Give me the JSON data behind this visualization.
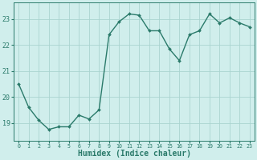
{
  "x": [
    0,
    1,
    2,
    3,
    4,
    5,
    6,
    7,
    8,
    9,
    10,
    11,
    12,
    13,
    14,
    15,
    16,
    17,
    18,
    19,
    20,
    21,
    22,
    23
  ],
  "y": [
    20.5,
    19.6,
    19.1,
    18.75,
    18.85,
    18.85,
    19.3,
    19.15,
    19.5,
    22.4,
    22.9,
    23.2,
    23.15,
    22.55,
    22.55,
    21.85,
    21.4,
    22.4,
    22.55,
    23.2,
    22.85,
    23.05,
    22.85,
    22.7
  ],
  "line_color": "#2a7a6a",
  "marker": "D",
  "markersize": 2.0,
  "linewidth": 1.0,
  "bg_color": "#d0eeec",
  "grid_color": "#aad4d0",
  "tick_color": "#2a7a6a",
  "xlabel": "Humidex (Indice chaleur)",
  "xlabel_fontsize": 7,
  "ylabel_ticks": [
    19,
    20,
    21,
    22,
    23
  ],
  "xlim": [
    -0.5,
    23.5
  ],
  "ylim": [
    18.3,
    23.65
  ],
  "xtick_labels": [
    "0",
    "1",
    "2",
    "3",
    "4",
    "5",
    "6",
    "7",
    "8",
    "9",
    "10",
    "11",
    "12",
    "13",
    "14",
    "15",
    "16",
    "17",
    "18",
    "19",
    "20",
    "21",
    "22",
    "23"
  ]
}
